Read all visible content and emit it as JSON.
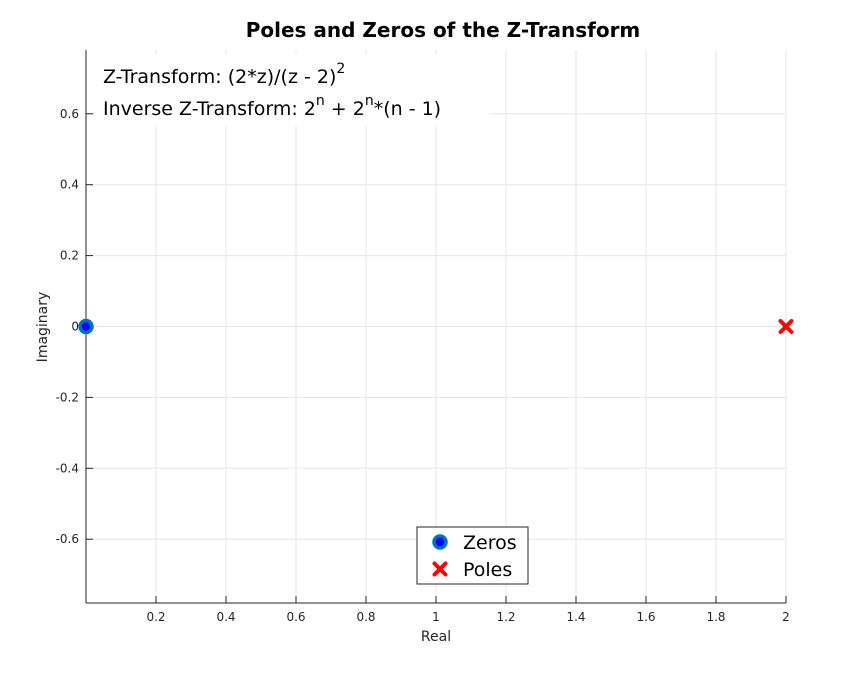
{
  "chart_data": {
    "type": "scatter",
    "title": "Poles and Zeros of the Z-Transform",
    "xlabel": "Real",
    "ylabel": "Imaginary",
    "xlim": [
      0,
      2
    ],
    "ylim": [
      -0.78,
      0.78
    ],
    "xticks": [
      0.2,
      0.4,
      0.6,
      0.8,
      1,
      1.2,
      1.4,
      1.6,
      1.8,
      2
    ],
    "xtick_labels": [
      "0.2",
      "0.4",
      "0.6",
      "0.8",
      "1",
      "1.2",
      "1.4",
      "1.6",
      "1.8",
      "2"
    ],
    "yticks": [
      0.6,
      0.4,
      0.2,
      0,
      -0.2,
      -0.4,
      -0.6
    ],
    "ytick_labels": [
      "0.6",
      "0.4",
      "0.2",
      "0",
      "-0.2",
      "-0.4",
      "-0.6"
    ],
    "grid": true,
    "legend_position": "bottom-center",
    "series": [
      {
        "name": "Zeros",
        "marker": "circle",
        "color": "#0072BD",
        "fill": "#0000FF",
        "points": [
          {
            "x": 0,
            "y": 0
          }
        ]
      },
      {
        "name": "Poles",
        "marker": "x",
        "color": "#FF0000",
        "points": [
          {
            "x": 2,
            "y": 0
          }
        ]
      }
    ],
    "annotations": {
      "line1": {
        "text": "Z-Transform: (2*z)/(z - 2)",
        "sup": "2"
      },
      "line2": [
        {
          "t": "text",
          "v": "Inverse Z-Transform: 2"
        },
        {
          "t": "sup",
          "v": "n"
        },
        {
          "t": "text",
          "v": " + 2"
        },
        {
          "t": "sup",
          "v": "n"
        },
        {
          "t": "text",
          "v": "*(n - 1)"
        }
      ]
    }
  }
}
